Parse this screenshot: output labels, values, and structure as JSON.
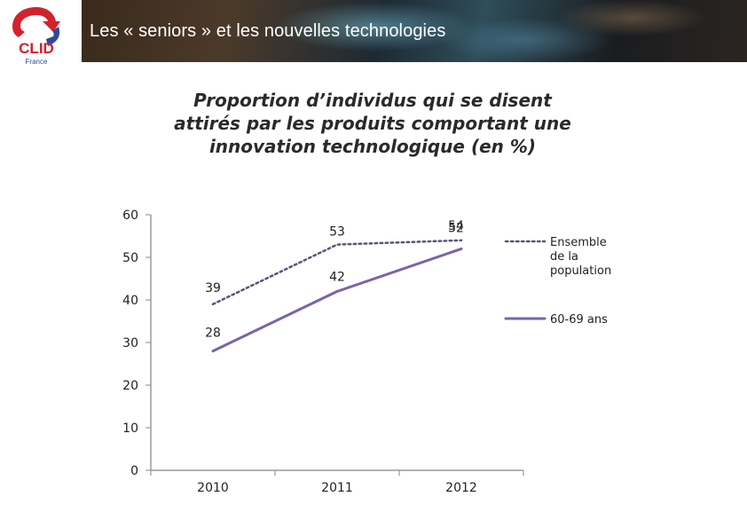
{
  "header": {
    "title": "Les « seniors » et les nouvelles technologies",
    "logo_text": "CLID",
    "logo_subtext": "France"
  },
  "colors": {
    "series_line": "#7a64a8",
    "series_dotted": "#5a5478",
    "axis": "#999999",
    "logo_red": "#d3212d",
    "logo_blue": "#2b4b9a"
  },
  "chart_data": {
    "type": "line",
    "title_lines": [
      "Proportion d’individus qui se disent",
      "attirés par les produits comportant une",
      "innovation technologique (en %)"
    ],
    "x": [
      "2010",
      "2011",
      "2012"
    ],
    "ylim": [
      0,
      60
    ],
    "yticks": [
      "0",
      "10",
      "20",
      "30",
      "40",
      "50",
      "60"
    ],
    "grid": false,
    "legend_placement": "right",
    "series": [
      {
        "name": "Ensemble de la population",
        "name_lines": [
          "Ensemble",
          "de la",
          "population"
        ],
        "values": [
          39,
          53,
          54
        ],
        "style": "dotted"
      },
      {
        "name": "60-69 ans",
        "name_lines": [
          "60-69 ans"
        ],
        "values": [
          28,
          42,
          52
        ],
        "style": "solid"
      }
    ]
  }
}
